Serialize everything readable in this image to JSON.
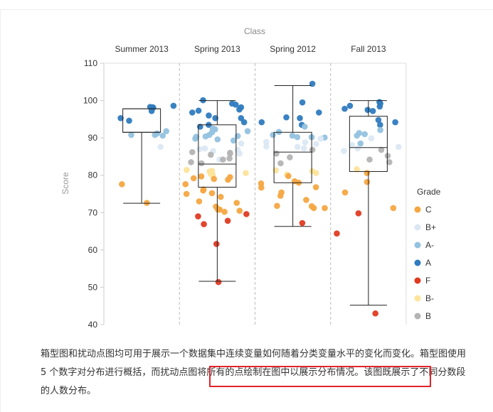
{
  "chart_data": {
    "type": "box+jitter",
    "title": "Class",
    "xlabel": "",
    "ylabel": "Score",
    "ylim": [
      40,
      110
    ],
    "yticks": [
      40,
      50,
      60,
      70,
      80,
      90,
      100,
      110
    ],
    "categories": [
      "Summer 2013",
      "Spring 2013",
      "Spring 2012",
      "Fall 2013"
    ],
    "grid": false,
    "legend": {
      "title": "Grade",
      "placement": "right",
      "items": [
        {
          "label": "C",
          "color": "#f5a742"
        },
        {
          "label": "B+",
          "color": "#dbe8f3"
        },
        {
          "label": "A-",
          "color": "#93c2df"
        },
        {
          "label": "A",
          "color": "#2f7bbf"
        },
        {
          "label": "F",
          "color": "#e03a22"
        },
        {
          "label": "B-",
          "color": "#fde49b"
        },
        {
          "label": "B",
          "color": "#b4b4b4"
        }
      ]
    },
    "boxes": [
      {
        "category": "Summer 2013",
        "min": 72.5,
        "q1": 91.5,
        "median": 91.5,
        "q3": 97.8,
        "max": 97.8
      },
      {
        "category": "Spring 2013",
        "min": 51.6,
        "q1": 76.8,
        "median": 83.0,
        "q3": 93.5,
        "max": 100.0
      },
      {
        "category": "Spring 2012",
        "min": 66.3,
        "q1": 78.0,
        "median": 86.2,
        "q3": 91.5,
        "max": 104.0
      },
      {
        "category": "Fall 2013",
        "min": 45.2,
        "q1": 81.0,
        "median": 87.4,
        "q3": 95.8,
        "max": 100.0
      }
    ],
    "points": [
      {
        "category": "Summer 2013",
        "grade": "A",
        "scores": [
          97.2,
          94.6,
          98.3,
          98.6,
          98.1,
          98.2,
          95.3
        ]
      },
      {
        "category": "Summer 2013",
        "grade": "A-",
        "scores": [
          91.8,
          90.8,
          90.6,
          91.2,
          90.8
        ]
      },
      {
        "category": "Summer 2013",
        "grade": "B+",
        "scores": [
          87.6
        ]
      },
      {
        "category": "Summer 2013",
        "grade": "C",
        "scores": [
          77.6,
          72.6
        ]
      },
      {
        "category": "Spring 2013",
        "grade": "A",
        "scores": [
          93.0,
          97.3,
          98.9,
          98.2,
          97.6,
          96.8,
          95.3,
          99.2,
          93.5,
          100.1,
          96.0,
          94.2,
          95.3
        ]
      },
      {
        "category": "Spring 2013",
        "grade": "A-",
        "scores": [
          91.5,
          92.5,
          90.5,
          90.3,
          89.8,
          90.4,
          90.8,
          89.6,
          91.8,
          92.3,
          89.3
        ]
      },
      {
        "category": "Spring 2013",
        "grade": "B+",
        "scores": [
          87.0,
          86.5,
          88.5,
          86.8,
          87.2,
          84.2,
          85.8
        ]
      },
      {
        "category": "Spring 2013",
        "grade": "B",
        "scores": [
          85.8,
          86.2,
          84.2,
          83.5,
          84.5,
          85.5,
          86.0,
          83.2
        ]
      },
      {
        "category": "Spring 2013",
        "grade": "B-",
        "scores": [
          81.0,
          80.3,
          81.2,
          80.6,
          80.1,
          81.4
        ]
      },
      {
        "category": "Spring 2013",
        "grade": "C",
        "scores": [
          79.7,
          79.2,
          78.8,
          77.6,
          76.2,
          75.9,
          75.2,
          73.0,
          72.6,
          71.6,
          70.8,
          70.5,
          70.2,
          79.5,
          75.0,
          74.2,
          79.0,
          70.8
        ]
      },
      {
        "category": "Spring 2013",
        "grade": "F",
        "scores": [
          67.8,
          66.9,
          61.6,
          69.6,
          69.0,
          51.4
        ]
      },
      {
        "category": "Spring 2012",
        "grade": "A",
        "scores": [
          96.8,
          95.3,
          94.2,
          93.5,
          99.5,
          95.5,
          104.5
        ]
      },
      {
        "category": "Spring 2012",
        "grade": "A-",
        "scores": [
          93.0,
          91.6,
          90.2,
          90.1,
          90.6,
          90.8,
          90.2
        ]
      },
      {
        "category": "Spring 2012",
        "grade": "B+",
        "scores": [
          87.2,
          88.4,
          87.6,
          88.8,
          88.9,
          89.8,
          87.7
        ]
      },
      {
        "category": "Spring 2012",
        "grade": "B",
        "scores": [
          85.8,
          84.8,
          86.8,
          83.2
        ]
      },
      {
        "category": "Spring 2012",
        "grade": "B-",
        "scores": [
          80.6,
          81.3,
          81.1,
          80.2
        ]
      },
      {
        "category": "Spring 2012",
        "grade": "C",
        "scores": [
          79.8,
          76.7,
          75.4,
          73.4,
          71.2,
          71.7,
          71.2,
          78.0,
          76.8,
          74.5,
          77.8,
          71.8,
          78.4
        ]
      },
      {
        "category": "Spring 2012",
        "grade": "F",
        "scores": [
          67.2
        ]
      },
      {
        "category": "Fall 2013",
        "grade": "A",
        "scores": [
          99.2,
          99.6,
          97.5,
          94.8,
          94.2,
          93.5,
          97.8,
          97.2,
          98.6,
          98.4
        ]
      },
      {
        "category": "Fall 2013",
        "grade": "A-",
        "scores": [
          91.0,
          90.6,
          92.1,
          91.3,
          88.5
        ]
      },
      {
        "category": "Fall 2013",
        "grade": "B+",
        "scores": [
          88.1,
          87.2,
          86.5,
          89.9,
          87.6
        ]
      },
      {
        "category": "Fall 2013",
        "grade": "B",
        "scores": [
          86.8,
          84.2,
          83.5,
          85.2
        ]
      },
      {
        "category": "Fall 2013",
        "grade": "B-",
        "scores": [
          81.6
        ]
      },
      {
        "category": "Fall 2013",
        "grade": "C",
        "scores": [
          80.6,
          78.2,
          75.4,
          71.2
        ]
      },
      {
        "category": "Fall 2013",
        "grade": "F",
        "scores": [
          69.8,
          64.4,
          43.0
        ]
      }
    ]
  },
  "caption": {
    "text": "箱型图和扰动点图均可用于展示一个数据集中连续变量如何随着分类变量水平的变化而变化。箱型图使用 5 个数字对分布进行概括，而扰动点图将所有的点绘制在图中以展示分布情况。该图既展示了不同分数段的人数分布。"
  }
}
